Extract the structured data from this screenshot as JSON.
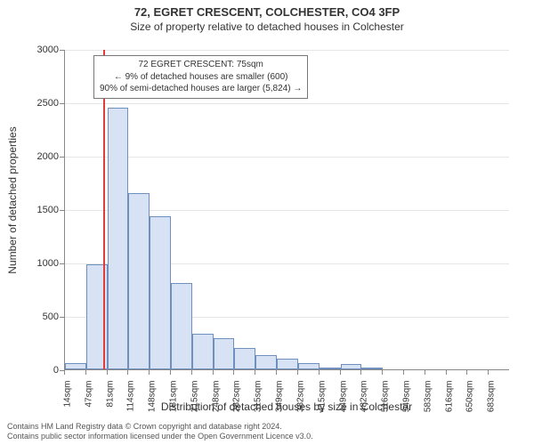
{
  "title": "72, EGRET CRESCENT, COLCHESTER, CO4 3FP",
  "subtitle": "Size of property relative to detached houses in Colchester",
  "y_label": "Number of detached properties",
  "x_label": "Distribution of detached houses by size in Colchester",
  "annotation": {
    "line1": "72 EGRET CRESCENT: 75sqm",
    "line2": "← 9% of detached houses are smaller (600)",
    "line3": "90% of semi-detached houses are larger (5,824) →"
  },
  "footer": {
    "line1": "Contains HM Land Registry data © Crown copyright and database right 2024.",
    "line2": "Contains public sector information licensed under the Open Government Licence v3.0."
  },
  "chart": {
    "type": "histogram",
    "background_color": "#ffffff",
    "grid_color": "#e6e6e6",
    "axis_color": "#888888",
    "bar_fill": "#d7e3f4",
    "bar_stroke": "#6f8fbf",
    "marker_color": "#e03c3c",
    "marker_value": 75,
    "x_start": 14,
    "x_step": 33.5,
    "x_count": 21,
    "x_ticks": [
      "14sqm",
      "47sqm",
      "81sqm",
      "114sqm",
      "148sqm",
      "181sqm",
      "215sqm",
      "248sqm",
      "282sqm",
      "315sqm",
      "349sqm",
      "382sqm",
      "415sqm",
      "449sqm",
      "482sqm",
      "516sqm",
      "549sqm",
      "583sqm",
      "616sqm",
      "650sqm",
      "683sqm"
    ],
    "y_max": 3000,
    "y_ticks": [
      0,
      500,
      1000,
      1500,
      2000,
      2500,
      3000
    ],
    "values": [
      60,
      980,
      2450,
      1650,
      1430,
      810,
      330,
      290,
      200,
      130,
      100,
      60,
      20,
      50,
      10,
      0,
      0,
      0,
      0,
      0,
      0
    ],
    "title_fontsize": 13,
    "subtitle_fontsize": 12,
    "label_fontsize": 12,
    "tick_fontsize": 11,
    "x_tick_fontsize": 10,
    "annotation_fontsize": 10
  }
}
